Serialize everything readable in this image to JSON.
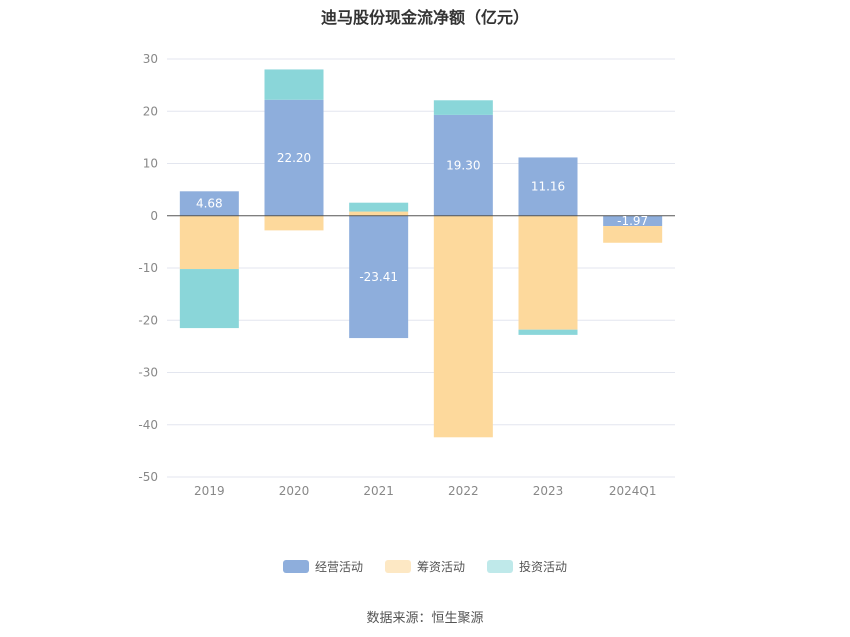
{
  "title": "迪马股份现金流净额（亿元）",
  "source": "数据来源：恒生聚源",
  "colors": {
    "operating": "#8eaedc",
    "financing": "#fdd99c",
    "investing": "#8ad6d9",
    "grid": "#e3e6ef",
    "zero_line": "#555555",
    "tick_text": "#888888"
  },
  "chart_data": {
    "type": "bar",
    "stacked": true,
    "categories": [
      "2019",
      "2020",
      "2021",
      "2022",
      "2023",
      "2024Q1"
    ],
    "series": [
      {
        "name": "经营活动",
        "color": "#8eaedc",
        "values": [
          4.68,
          22.2,
          -23.41,
          19.3,
          11.16,
          -1.97
        ],
        "labels": [
          "4.68",
          "22.20",
          "-23.41",
          "19.30",
          "11.16",
          "-1.97"
        ]
      },
      {
        "name": "筹资活动",
        "color": "#fdd99c",
        "values": [
          -10.2,
          -2.8,
          0.8,
          -42.4,
          -21.8,
          -3.2
        ]
      },
      {
        "name": "投资活动",
        "color": "#8ad6d9",
        "values": [
          -11.3,
          5.8,
          1.7,
          2.8,
          -1.0,
          0.0
        ]
      }
    ],
    "yticks": [
      30,
      20,
      10,
      0,
      -10,
      -20,
      -30,
      -40,
      -50
    ],
    "ylim": [
      -50,
      30
    ],
    "grid": true,
    "legend_position": "bottom"
  }
}
